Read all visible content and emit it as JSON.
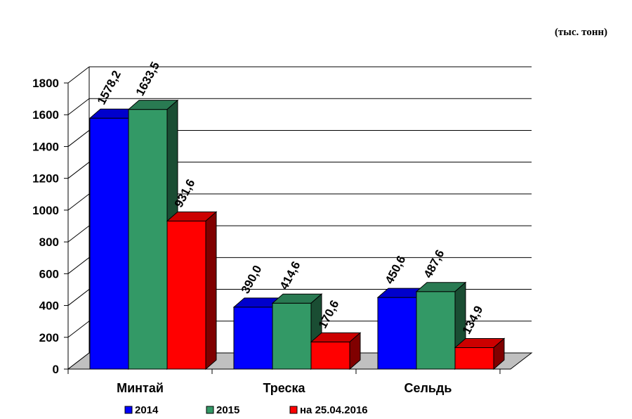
{
  "units": "(тыс. тонн)",
  "colors": {
    "s2014": "#0000ff",
    "s2015": "#339966",
    "s2016": "#ff0000",
    "floor": "#c0c0c0"
  },
  "chart_data": {
    "type": "bar",
    "categories": [
      "Минтай",
      "Треска",
      "Сельдь"
    ],
    "series": [
      {
        "name": "2014",
        "values": [
          1578.2,
          390.0,
          450.6
        ],
        "labels": [
          "1578,2",
          "390,0",
          "450,6"
        ]
      },
      {
        "name": "2015",
        "values": [
          1633.5,
          414.6,
          487.6
        ],
        "labels": [
          "1633,5",
          "414,6",
          "487,6"
        ]
      },
      {
        "name": "на 25.04.2016",
        "values": [
          931.6,
          170.6,
          134.9
        ],
        "labels": [
          "931,6",
          "170,6",
          "134,9"
        ]
      }
    ],
    "y_ticks": [
      "0",
      "200",
      "400",
      "600",
      "800",
      "1000",
      "1200",
      "1400",
      "1600",
      "1800"
    ],
    "ylim": [
      0,
      1800
    ],
    "grid": true,
    "legend_position": "bottom",
    "three_d": true
  }
}
